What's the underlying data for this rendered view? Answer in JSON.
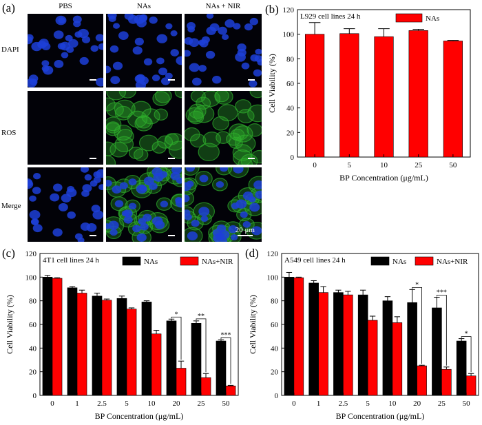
{
  "panel_labels": [
    "(a)",
    "(b)",
    "(c)",
    "(d)"
  ],
  "micro": {
    "columns": [
      "PBS",
      "NAs",
      "NAs + NIR"
    ],
    "rows": [
      "DAPI",
      "ROS",
      "Merge"
    ],
    "scale_label": "20 μm",
    "colors": {
      "dapi": "#1d3fd8",
      "ros": "#2fae2c",
      "background": "#020208"
    }
  },
  "chart_data": [
    {
      "type": "bar",
      "panel": "(b)",
      "annotation": "L929 cell lines 24 h",
      "categories": [
        "0",
        "5",
        "10",
        "25",
        "50"
      ],
      "series": [
        {
          "name": "NAs",
          "color": "#ff0000",
          "values": [
            100,
            100.5,
            98,
            103,
            94.5
          ],
          "errors": [
            9.5,
            4,
            6.5,
            1,
            0.5
          ]
        }
      ],
      "xlabel": "BP Concentration (μg/mL)",
      "ylabel": "Cell Viability (%)",
      "ylim": [
        0,
        120
      ],
      "yticks": [
        0,
        20,
        40,
        60,
        80,
        100,
        120
      ],
      "legend": "top-right"
    },
    {
      "type": "bar",
      "panel": "(c)",
      "annotation": "4T1 cell lines 24 h",
      "categories": [
        "0",
        "1",
        "2.5",
        "5",
        "10",
        "20",
        "25",
        "50"
      ],
      "series": [
        {
          "name": "NAs",
          "color": "#000000",
          "values": [
            100,
            91,
            84,
            82,
            79,
            63,
            61,
            46
          ],
          "errors": [
            1.5,
            1,
            2.5,
            2,
            1,
            1.5,
            2,
            1
          ]
        },
        {
          "name": "NAs+NIR",
          "color": "#ff0000",
          "values": [
            99,
            86.5,
            80.5,
            73,
            52,
            23,
            15,
            8
          ],
          "errors": [
            0.5,
            2.5,
            1,
            1,
            3,
            6,
            3.5,
            0.5
          ]
        }
      ],
      "significance": [
        {
          "category": "20",
          "label": "*"
        },
        {
          "category": "25",
          "label": "**"
        },
        {
          "category": "50",
          "label": "***"
        }
      ],
      "xlabel": "BP Concentration (μg/mL)",
      "ylabel": "Cell Viability (%)",
      "ylim": [
        0,
        120
      ],
      "yticks": [
        0,
        20,
        40,
        60,
        80,
        100,
        120
      ],
      "legend": "top-right"
    },
    {
      "type": "bar",
      "panel": "(d)",
      "annotation": "A549 cell lines 24 h",
      "categories": [
        "0",
        "1",
        "2.5",
        "5",
        "10",
        "20",
        "25",
        "50"
      ],
      "series": [
        {
          "name": "NAs",
          "color": "#000000",
          "values": [
            100,
            95,
            87,
            85,
            80,
            78.5,
            74,
            46
          ],
          "errors": [
            4,
            2,
            2,
            4,
            3.5,
            11,
            9,
            2
          ]
        },
        {
          "name": "NAs+NIR",
          "color": "#ff0000",
          "values": [
            99.5,
            87,
            85,
            63.5,
            61.5,
            25,
            22,
            16.5
          ],
          "errors": [
            0.5,
            5,
            3,
            3.5,
            5,
            0.5,
            2,
            2
          ]
        }
      ],
      "significance": [
        {
          "category": "20",
          "label": "*"
        },
        {
          "category": "25",
          "label": "***"
        },
        {
          "category": "50",
          "label": "*"
        }
      ],
      "xlabel": "BP Concentration (μg/mL)",
      "ylabel": "Cell Viability (%)",
      "ylim": [
        0,
        120
      ],
      "yticks": [
        0,
        20,
        40,
        60,
        80,
        100,
        120
      ],
      "legend": "top-right"
    }
  ]
}
